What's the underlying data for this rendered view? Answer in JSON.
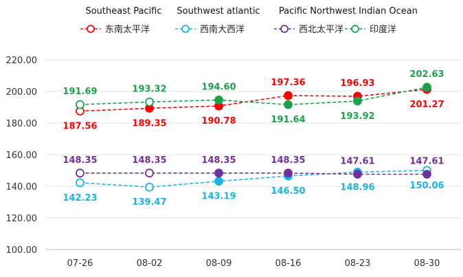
{
  "chart_data": {
    "type": "line",
    "categories": [
      "07-26",
      "08-02",
      "08-09",
      "08-16",
      "08-23",
      "08-30"
    ],
    "ylim": [
      100,
      220
    ],
    "yticks": [
      100,
      120,
      140,
      160,
      180,
      200,
      220
    ],
    "ytick_labels": [
      "100.00",
      "120.00",
      "140.00",
      "160.00",
      "180.00",
      "200.00",
      "220.00"
    ],
    "grid": "horizontal",
    "legend_position": "top",
    "series": [
      {
        "name": "东南太平洋",
        "english": "Southeast Pacific",
        "color": "#ff0000",
        "values": [
          187.56,
          189.35,
          190.78,
          197.36,
          196.93,
          201.27
        ],
        "labels": [
          "187.56",
          "189.35",
          "190.78",
          "197.36",
          "196.93",
          "201.27"
        ],
        "label_pos": [
          "below",
          "below",
          "below",
          "above",
          "above",
          "below"
        ],
        "filled": [
          false,
          true,
          true,
          true,
          true,
          true
        ]
      },
      {
        "name": "西南大西洋",
        "english": "Southwest atlantic",
        "color": "#19b4e6",
        "values": [
          142.23,
          139.47,
          143.19,
          146.5,
          148.96,
          150.06
        ],
        "labels": [
          "142.23",
          "139.47",
          "143.19",
          "146.50",
          "148.96",
          "150.06"
        ],
        "label_pos": [
          "below",
          "below",
          "below",
          "below",
          "below",
          "below"
        ],
        "filled": [
          false,
          false,
          true,
          true,
          true,
          false
        ]
      },
      {
        "name": "西北太平洋",
        "english": "Pacific Northwest",
        "color": "#7030a0",
        "values": [
          148.35,
          148.35,
          148.35,
          148.35,
          147.61,
          147.61
        ],
        "labels": [
          "148.35",
          "148.35",
          "148.35",
          "148.35",
          "147.61",
          "147.61"
        ],
        "label_pos": [
          "above",
          "above",
          "above",
          "above",
          "above",
          "above"
        ],
        "filled": [
          false,
          false,
          true,
          true,
          true,
          true
        ]
      },
      {
        "name": "印度洋",
        "english": "Indian Ocean",
        "color": "#1aa34a",
        "values": [
          191.69,
          193.32,
          194.6,
          191.64,
          193.92,
          202.63
        ],
        "labels": [
          "191.69",
          "193.32",
          "194.60",
          "191.64",
          "193.92",
          "202.63"
        ],
        "label_pos": [
          "above",
          "above",
          "above",
          "below",
          "below",
          "above"
        ],
        "filled": [
          false,
          false,
          true,
          true,
          true,
          true
        ]
      }
    ]
  }
}
